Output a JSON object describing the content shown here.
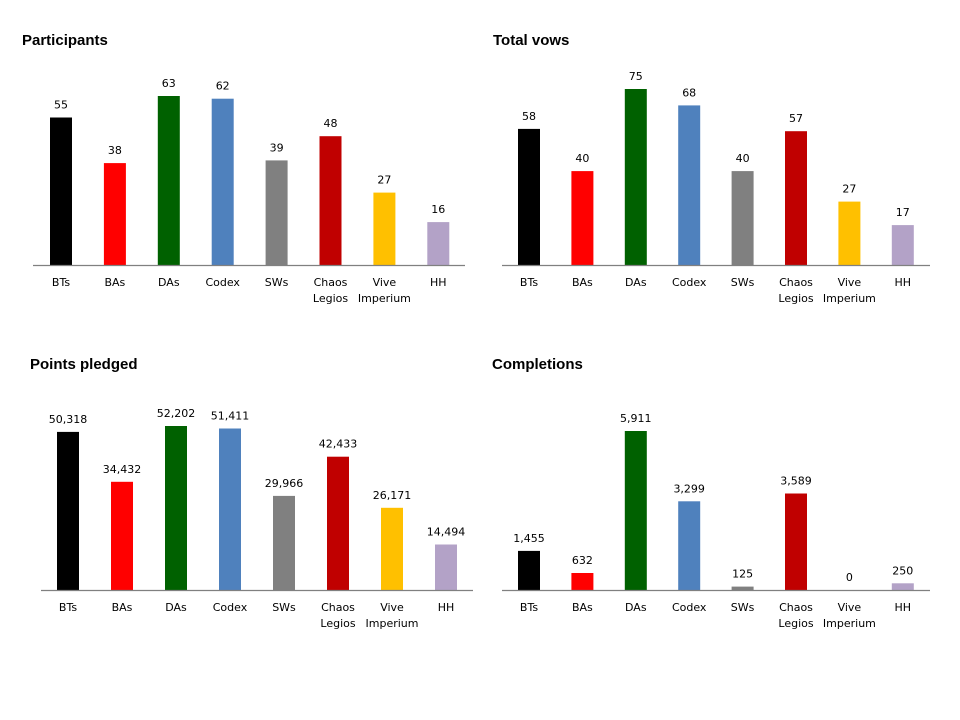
{
  "chart_data": [
    {
      "type": "bar",
      "title": "Participants",
      "xlabel": "",
      "ylabel": "",
      "categories": [
        "BTs",
        "BAs",
        "DAs",
        "Codex",
        "SWs",
        "Chaos Legios",
        "Vive Imperium",
        "HH"
      ],
      "values": [
        55,
        38,
        63,
        62,
        39,
        48,
        27,
        16
      ],
      "value_labels": [
        "55",
        "38",
        "63",
        "62",
        "39",
        "48",
        "27",
        "16"
      ],
      "ylim": [
        0,
        63
      ],
      "grid": false,
      "legend": "none"
    },
    {
      "type": "bar",
      "title": "Total vows",
      "xlabel": "",
      "ylabel": "",
      "categories": [
        "BTs",
        "BAs",
        "DAs",
        "Codex",
        "SWs",
        "Chaos Legios",
        "Vive Imperium",
        "HH"
      ],
      "values": [
        58,
        40,
        75,
        68,
        40,
        57,
        27,
        17
      ],
      "value_labels": [
        "58",
        "40",
        "75",
        "68",
        "40",
        "57",
        "27",
        "17"
      ],
      "ylim": [
        0,
        75
      ],
      "grid": false,
      "legend": "none"
    },
    {
      "type": "bar",
      "title": "Points pledged",
      "xlabel": "",
      "ylabel": "",
      "categories": [
        "BTs",
        "BAs",
        "DAs",
        "Codex",
        "SWs",
        "Chaos Legios",
        "Vive Imperium",
        "HH"
      ],
      "values": [
        50318,
        34432,
        52202,
        51411,
        29966,
        42433,
        26171,
        14494
      ],
      "value_labels": [
        "50,318",
        "34,432",
        "52,202",
        "51,411",
        "29,966",
        "42,433",
        "26,171",
        "14,494"
      ],
      "ylim": [
        0,
        52202
      ],
      "grid": false,
      "legend": "none"
    },
    {
      "type": "bar",
      "title": "Completions",
      "xlabel": "",
      "ylabel": "",
      "categories": [
        "BTs",
        "BAs",
        "DAs",
        "Codex",
        "SWs",
        "Chaos Legios",
        "Vive Imperium",
        "HH"
      ],
      "values": [
        1455,
        632,
        5911,
        3299,
        125,
        3589,
        0,
        250
      ],
      "value_labels": [
        "1,455",
        "632",
        "5,911",
        "3,299",
        "125",
        "3,589",
        "0",
        "250"
      ],
      "ylim": [
        0,
        5911
      ],
      "grid": false,
      "legend": "none"
    }
  ],
  "colors": [
    "#000000",
    "#ff0000",
    "#006100",
    "#4f81bd",
    "#808080",
    "#c00000",
    "#ffc000",
    "#b3a2c7"
  ],
  "axis_color": "#808080"
}
